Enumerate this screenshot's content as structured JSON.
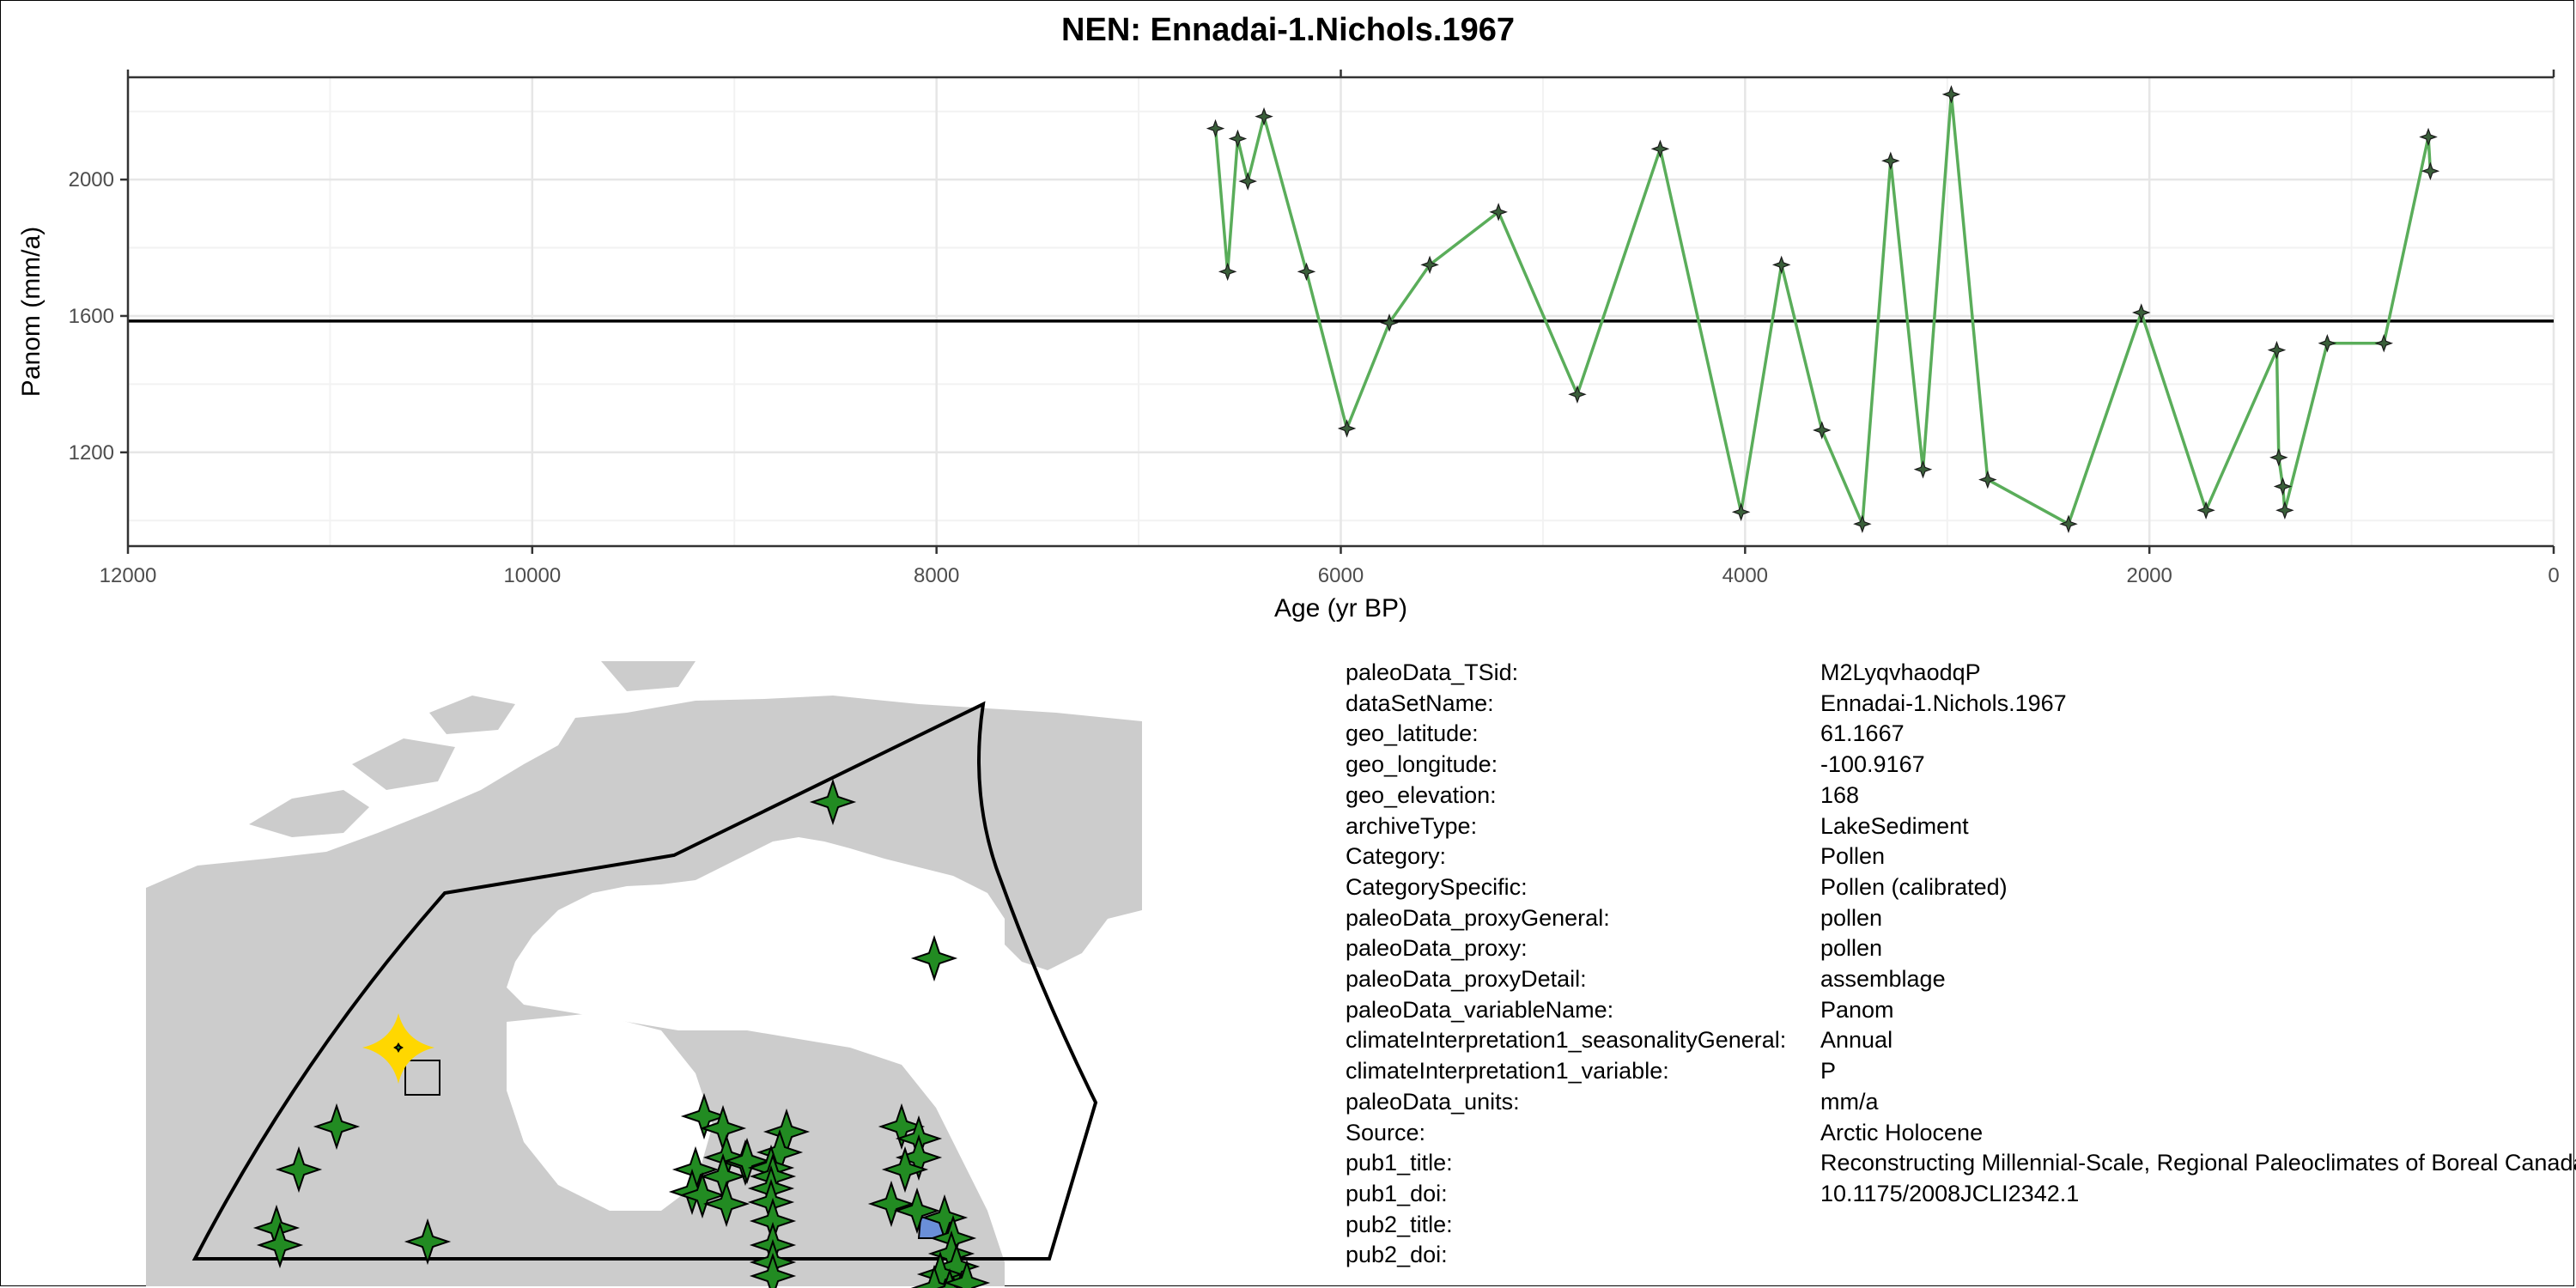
{
  "chart_data": {
    "type": "line",
    "title": "NEN: Ennadai-1.Nichols.1967",
    "xlabel": "Age (yr BP)",
    "ylabel": "Panom (mm/a)",
    "xlim": [
      12000,
      0
    ],
    "ylim": [
      925,
      2300
    ],
    "x_ticks": [
      12000,
      10000,
      8000,
      6000,
      4000,
      2000,
      0
    ],
    "y_ticks": [
      1200,
      1600,
      2000
    ],
    "reference_line_y": 1585,
    "grid": true,
    "series": [
      {
        "color": "#5aad5a",
        "x": [
          6620,
          6560,
          6510,
          6460,
          6380,
          6170,
          5970,
          5760,
          5560,
          5220,
          4830,
          4420,
          4020,
          3820,
          3620,
          3420,
          3280,
          3120,
          2980,
          2800,
          2400,
          2040,
          1720,
          1370,
          1360,
          1340,
          1330,
          1120,
          840,
          620,
          610
        ],
        "y": [
          2150,
          1730,
          2120,
          1995,
          2185,
          1730,
          1270,
          1580,
          1750,
          1905,
          1370,
          2090,
          1025,
          1750,
          1265,
          990,
          2055,
          1150,
          2250,
          1120,
          990,
          1610,
          1030,
          1500,
          1185,
          1100,
          1030,
          1520,
          1520,
          2125,
          2025
        ]
      }
    ]
  },
  "metadata": {
    "rows": [
      {
        "key": "paleoData_TSid:",
        "value": "M2LyqvhaodqP"
      },
      {
        "key": "dataSetName:",
        "value": "Ennadai-1.Nichols.1967"
      },
      {
        "key": "geo_latitude:",
        "value": "61.1667"
      },
      {
        "key": "geo_longitude:",
        "value": "-100.9167"
      },
      {
        "key": "geo_elevation:",
        "value": "168"
      },
      {
        "key": "archiveType:",
        "value": "LakeSediment"
      },
      {
        "key": "Category:",
        "value": "Pollen"
      },
      {
        "key": "CategorySpecific:",
        "value": "Pollen (calibrated)"
      },
      {
        "key": "paleoData_proxyGeneral:",
        "value": "pollen"
      },
      {
        "key": "paleoData_proxy:",
        "value": "pollen"
      },
      {
        "key": "paleoData_proxyDetail:",
        "value": "assemblage"
      },
      {
        "key": "paleoData_variableName:",
        "value": "Panom"
      },
      {
        "key": "climateInterpretation1_seasonalityGeneral:",
        "value": "Annual"
      },
      {
        "key": "climateInterpretation1_variable:",
        "value": "P"
      },
      {
        "key": "paleoData_units:",
        "value": "mm/a"
      },
      {
        "key": "Source:",
        "value": "Arctic Holocene"
      },
      {
        "key": "pub1_title:",
        "value": "Reconstructing Millennial-Scale, Regional Paleoclimates of Boreal Canada during the Holocene"
      },
      {
        "key": "pub1_doi:",
        "value": "10.1175/2008JCLI2342.1"
      },
      {
        "key": "pub2_title:",
        "value": ""
      },
      {
        "key": "pub2_doi:",
        "value": ""
      }
    ]
  },
  "map": {
    "land_color": "#cccccc",
    "site_color": "#228b22",
    "highlight_color": "#ffd700",
    "lake_color": "#6a8fd8"
  }
}
